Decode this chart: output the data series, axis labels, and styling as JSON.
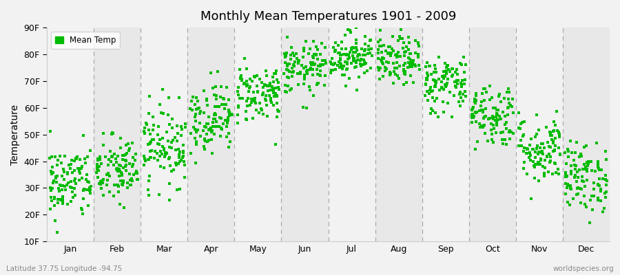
{
  "title": "Monthly Mean Temperatures 1901 - 2009",
  "ylabel": "Temperature",
  "ylim": [
    10,
    90
  ],
  "ytick_labels": [
    "10F",
    "20F",
    "30F",
    "40F",
    "50F",
    "60F",
    "70F",
    "80F",
    "90F"
  ],
  "ytick_values": [
    10,
    20,
    30,
    40,
    50,
    60,
    70,
    80,
    90
  ],
  "months": [
    "Jan",
    "Feb",
    "Mar",
    "Apr",
    "May",
    "Jun",
    "Jul",
    "Aug",
    "Sep",
    "Oct",
    "Nov",
    "Dec"
  ],
  "month_means": [
    32.0,
    36.5,
    46.0,
    56.5,
    65.5,
    74.5,
    79.5,
    77.5,
    69.0,
    57.5,
    44.5,
    34.0
  ],
  "month_stds": [
    7.0,
    6.5,
    7.5,
    6.5,
    5.5,
    5.0,
    4.5,
    4.5,
    5.5,
    6.0,
    6.5,
    6.5
  ],
  "n_years": 109,
  "dot_color": "#00bb00",
  "dot_size": 5,
  "bg_color": "#f2f2f2",
  "plot_bg_color": "#f2f2f2",
  "alt_band_color": "#e8e8e8",
  "legend_label": "Mean Temp",
  "subtitle_left": "Latitude 37.75 Longitude -94.75",
  "subtitle_right": "worldspecies.org",
  "seed": 42
}
